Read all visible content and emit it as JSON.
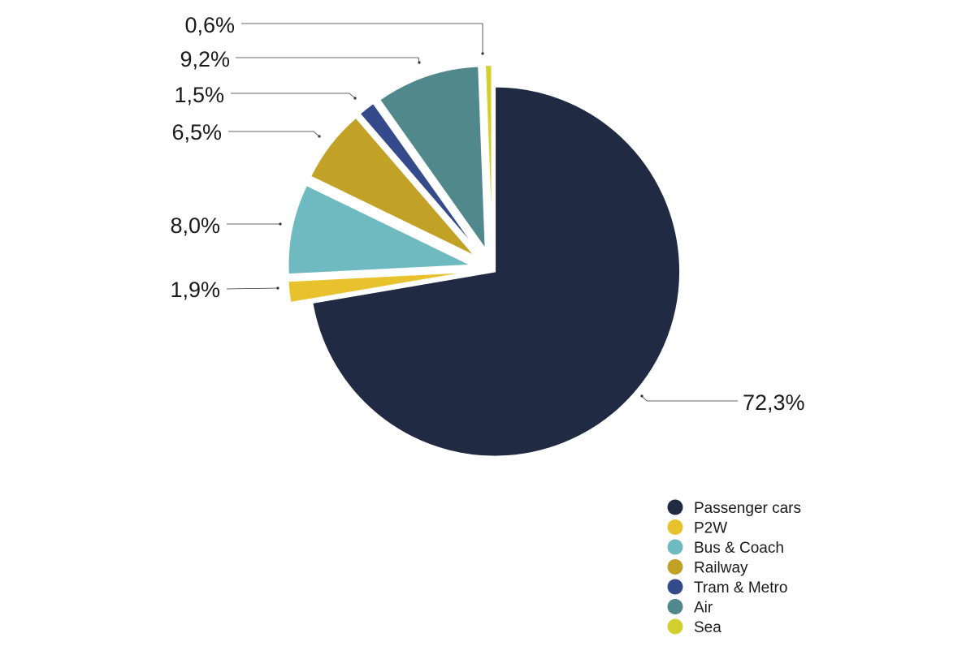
{
  "chart_data": {
    "type": "pie",
    "categories": [
      "Passenger cars",
      "P2W",
      "Bus & Coach",
      "Railway",
      "Tram & Metro",
      "Air",
      "Sea"
    ],
    "values": [
      72.3,
      1.9,
      8.0,
      6.5,
      1.5,
      9.2,
      0.6
    ],
    "value_labels": [
      "72,3%",
      "1,9%",
      "8,0%",
      "6,5%",
      "1,5%",
      "9,2%",
      "0,6%"
    ],
    "colors": [
      "#212a43",
      "#e8c22d",
      "#6fbac1",
      "#c2a226",
      "#354a8a",
      "#50888c",
      "#d2cf2e"
    ],
    "exploded": [
      "Passenger cars"
    ],
    "legend_position": "bottom-right",
    "title": ""
  }
}
